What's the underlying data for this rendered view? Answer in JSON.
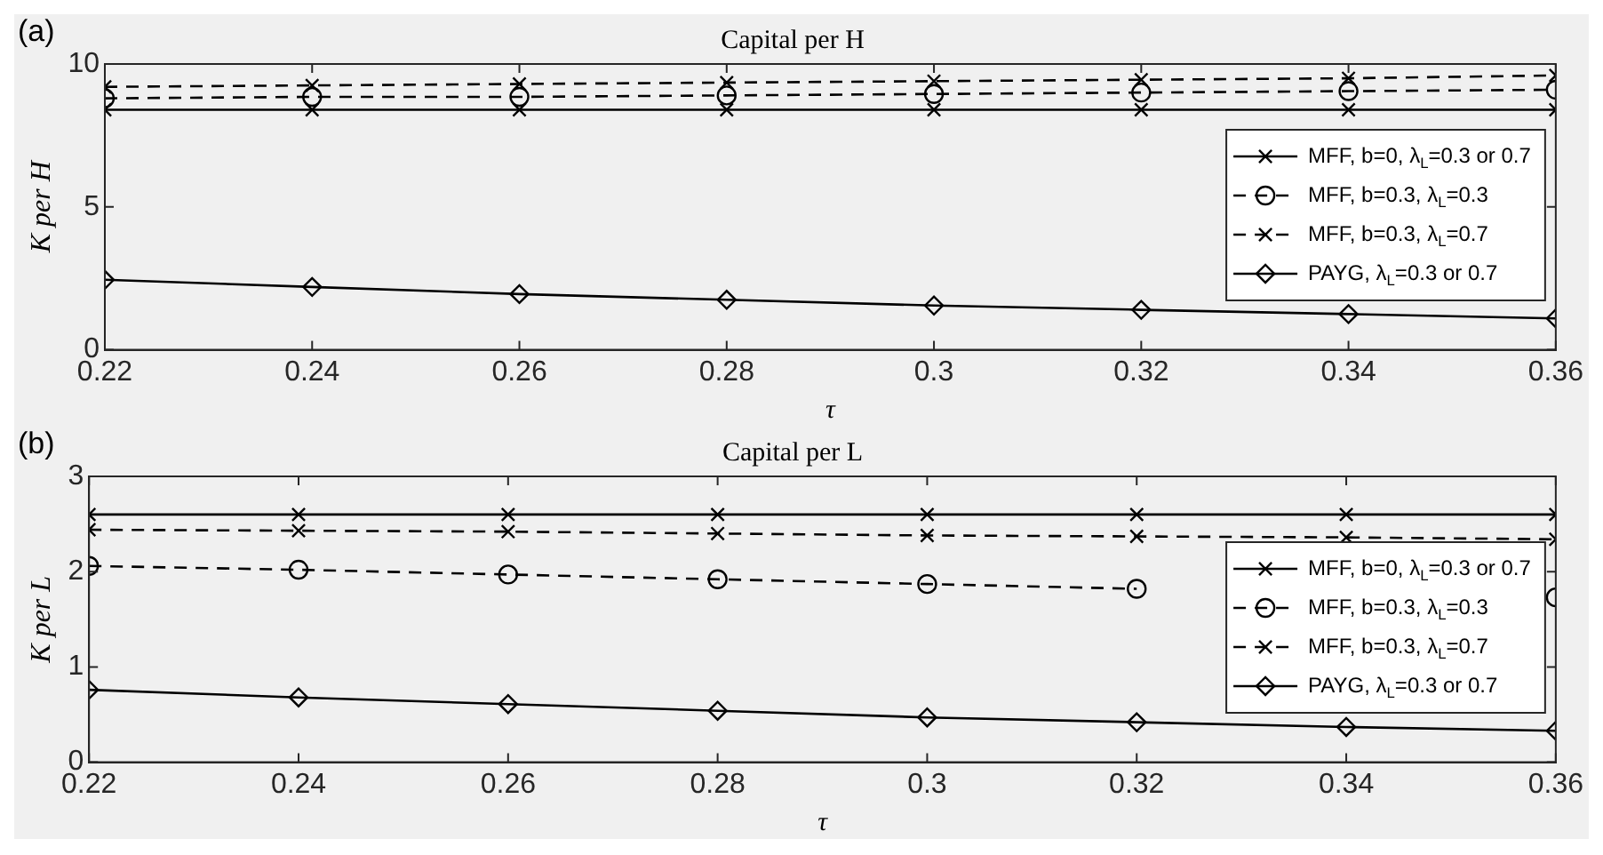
{
  "chart_data": [
    {
      "type": "line",
      "title": "Capital per H",
      "xlabel": "τ",
      "ylabel": "K per H",
      "annotations": [
        "(a)"
      ],
      "x": [
        0.22,
        0.24,
        0.26,
        0.28,
        0.3,
        0.32,
        0.34,
        0.36
      ],
      "xlim": [
        0.22,
        0.36
      ],
      "xticks": [
        0.22,
        0.24,
        0.26,
        0.28,
        0.3,
        0.32,
        0.34,
        0.36
      ],
      "ylim": [
        0,
        10
      ],
      "yticks": [
        0,
        5,
        10
      ],
      "grid": false,
      "legend": "right",
      "series": [
        {
          "name": "MFF, b=0, λ$_{L}$=0.3 or 0.7",
          "color": "#000000",
          "marker": "cross",
          "line_style": "solid",
          "values": [
            8.4,
            8.4,
            8.4,
            8.4,
            8.4,
            8.4,
            8.4,
            8.4
          ]
        },
        {
          "name": "MFF, b=0.3, λ$_{L}$=0.3",
          "color": "#000000",
          "marker": "circle",
          "line_style": "dashed",
          "values": [
            8.8,
            8.85,
            8.85,
            8.9,
            8.95,
            9.0,
            9.05,
            9.1
          ]
        },
        {
          "name": "MFF, b=0.3, λ$_{L}$=0.7",
          "color": "#000000",
          "marker": "cross",
          "line_style": "dashed",
          "values": [
            9.2,
            9.25,
            9.3,
            9.35,
            9.4,
            9.45,
            9.5,
            9.6
          ]
        },
        {
          "name": "PAYG, λ$_{L}$=0.3 or 0.7",
          "color": "#000000",
          "marker": "diamond",
          "line_style": "solid",
          "values": [
            2.45,
            2.2,
            1.95,
            1.75,
            1.55,
            1.4,
            1.25,
            1.1
          ]
        }
      ]
    },
    {
      "type": "line",
      "title": "Capital per L",
      "xlabel": "τ",
      "ylabel": "K per L",
      "annotations": [
        "(b)"
      ],
      "x": [
        0.22,
        0.24,
        0.26,
        0.28,
        0.3,
        0.32,
        0.34,
        0.36
      ],
      "xlim": [
        0.22,
        0.36
      ],
      "xticks": [
        0.22,
        0.24,
        0.26,
        0.28,
        0.3,
        0.32,
        0.34,
        0.36
      ],
      "ylim": [
        0,
        3
      ],
      "yticks": [
        0,
        1,
        2,
        3
      ],
      "grid": false,
      "legend": "right",
      "series": [
        {
          "name": "MFF, b=0, λ$_{L}$=0.3 or 0.7",
          "color": "#000000",
          "marker": "cross",
          "line_style": "solid",
          "values": [
            2.6,
            2.6,
            2.6,
            2.6,
            2.6,
            2.6,
            2.6,
            2.6
          ]
        },
        {
          "name": "MFF, b=0.3, λ$_{L}$=0.3",
          "color": "#000000",
          "marker": "circle",
          "line_style": "dashed",
          "values": [
            2.06,
            2.02,
            1.97,
            1.92,
            1.87,
            1.82,
            null,
            1.73
          ]
        },
        {
          "name": "MFF, b=0.3, λ$_{L}$=0.7",
          "color": "#000000",
          "marker": "cross",
          "line_style": "dashed",
          "values": [
            2.44,
            2.43,
            2.42,
            2.4,
            2.38,
            2.37,
            2.36,
            2.34
          ]
        },
        {
          "name": "PAYG, λ$_{L}$=0.3 or 0.7",
          "color": "#000000",
          "marker": "diamond",
          "line_style": "solid",
          "values": [
            0.76,
            0.68,
            0.61,
            0.54,
            0.47,
            0.42,
            0.37,
            0.33
          ]
        }
      ]
    }
  ]
}
